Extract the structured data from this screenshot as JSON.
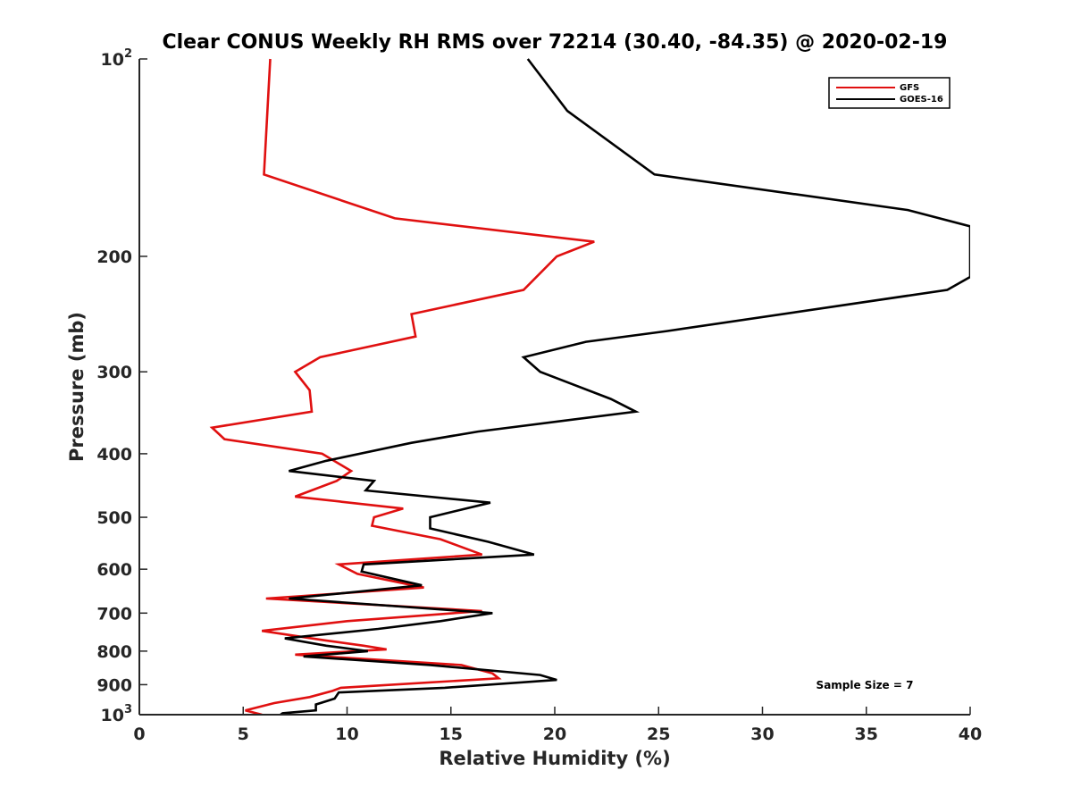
{
  "chart_data": {
    "type": "line",
    "title": "Clear CONUS Weekly RH RMS over 72214 (30.40, -84.35) @ 2020-02-19",
    "xlabel": "Relative Humidity (%)",
    "ylabel": "Pressure (mb)",
    "xlim": [
      0,
      40
    ],
    "ylim": [
      100,
      1000
    ],
    "yscale": "log",
    "y_reversed": true,
    "x_ticks": [
      0,
      5,
      10,
      15,
      20,
      25,
      30,
      35,
      40
    ],
    "x_tick_labels": [
      "0",
      "5",
      "10",
      "15",
      "20",
      "25",
      "30",
      "35",
      "40"
    ],
    "y_ticks": [
      100,
      200,
      300,
      400,
      500,
      600,
      700,
      800,
      900,
      1000
    ],
    "y_tick_labels": [
      {
        "base": "10",
        "exp": "2"
      },
      {
        "text": "200"
      },
      {
        "text": "300"
      },
      {
        "text": "400"
      },
      {
        "text": "500"
      },
      {
        "text": "600"
      },
      {
        "text": "700"
      },
      {
        "text": "800"
      },
      {
        "text": "900"
      },
      {
        "base": "10",
        "exp": "3"
      }
    ],
    "grid": false,
    "legend_position": "top-right",
    "annotation": "Sample Size = 7",
    "series": [
      {
        "name": "GFS",
        "color": "#e01010",
        "points": [
          [
            6.3,
            100
          ],
          [
            6.0,
            150
          ],
          [
            12.3,
            175
          ],
          [
            21.9,
            190
          ],
          [
            20.1,
            200
          ],
          [
            18.5,
            225
          ],
          [
            13.1,
            245
          ],
          [
            13.3,
            265
          ],
          [
            8.7,
            285
          ],
          [
            7.5,
            300
          ],
          [
            8.2,
            320
          ],
          [
            8.3,
            345
          ],
          [
            3.5,
            365
          ],
          [
            4.1,
            380
          ],
          [
            8.8,
            400
          ],
          [
            10.2,
            425
          ],
          [
            9.5,
            440
          ],
          [
            7.5,
            465
          ],
          [
            12.7,
            485
          ],
          [
            11.3,
            500
          ],
          [
            11.2,
            515
          ],
          [
            14.5,
            540
          ],
          [
            16.5,
            570
          ],
          [
            9.6,
            590
          ],
          [
            10.5,
            610
          ],
          [
            13.7,
            640
          ],
          [
            6.1,
            665
          ],
          [
            16.5,
            695
          ],
          [
            10.0,
            720
          ],
          [
            5.9,
            745
          ],
          [
            8.9,
            770
          ],
          [
            10.8,
            785
          ],
          [
            11.9,
            795
          ],
          [
            7.5,
            810
          ],
          [
            15.5,
            840
          ],
          [
            17.0,
            865
          ],
          [
            17.3,
            880
          ],
          [
            9.7,
            910
          ],
          [
            9.3,
            920
          ],
          [
            8.2,
            940
          ],
          [
            6.5,
            960
          ],
          [
            5.1,
            985
          ],
          [
            5.9,
            1000
          ]
        ]
      },
      {
        "name": "GOES-16",
        "color": "#000000",
        "points": [
          [
            18.7,
            100
          ],
          [
            20.6,
            120
          ],
          [
            24.8,
            150
          ],
          [
            37.0,
            170
          ],
          [
            40.0,
            180
          ],
          [
            40.0,
            215
          ],
          [
            38.9,
            225
          ],
          [
            25.4,
            260
          ],
          [
            21.5,
            270
          ],
          [
            18.5,
            285
          ],
          [
            19.3,
            300
          ],
          [
            22.7,
            330
          ],
          [
            23.9,
            345
          ],
          [
            16.3,
            370
          ],
          [
            13.1,
            385
          ],
          [
            9.0,
            410
          ],
          [
            7.2,
            425
          ],
          [
            11.3,
            440
          ],
          [
            10.9,
            455
          ],
          [
            16.9,
            475
          ],
          [
            14.0,
            500
          ],
          [
            14.0,
            520
          ],
          [
            16.8,
            545
          ],
          [
            19.0,
            570
          ],
          [
            10.8,
            590
          ],
          [
            10.7,
            605
          ],
          [
            13.6,
            635
          ],
          [
            7.2,
            665
          ],
          [
            17.0,
            700
          ],
          [
            14.5,
            720
          ],
          [
            11.5,
            740
          ],
          [
            7.0,
            765
          ],
          [
            9.0,
            785
          ],
          [
            11.0,
            800
          ],
          [
            7.9,
            815
          ],
          [
            14.0,
            840
          ],
          [
            19.3,
            870
          ],
          [
            20.1,
            885
          ],
          [
            14.7,
            910
          ],
          [
            9.6,
            925
          ],
          [
            9.4,
            945
          ],
          [
            8.5,
            965
          ],
          [
            8.5,
            985
          ],
          [
            6.9,
            995
          ],
          [
            6.8,
            1000
          ]
        ]
      }
    ]
  }
}
